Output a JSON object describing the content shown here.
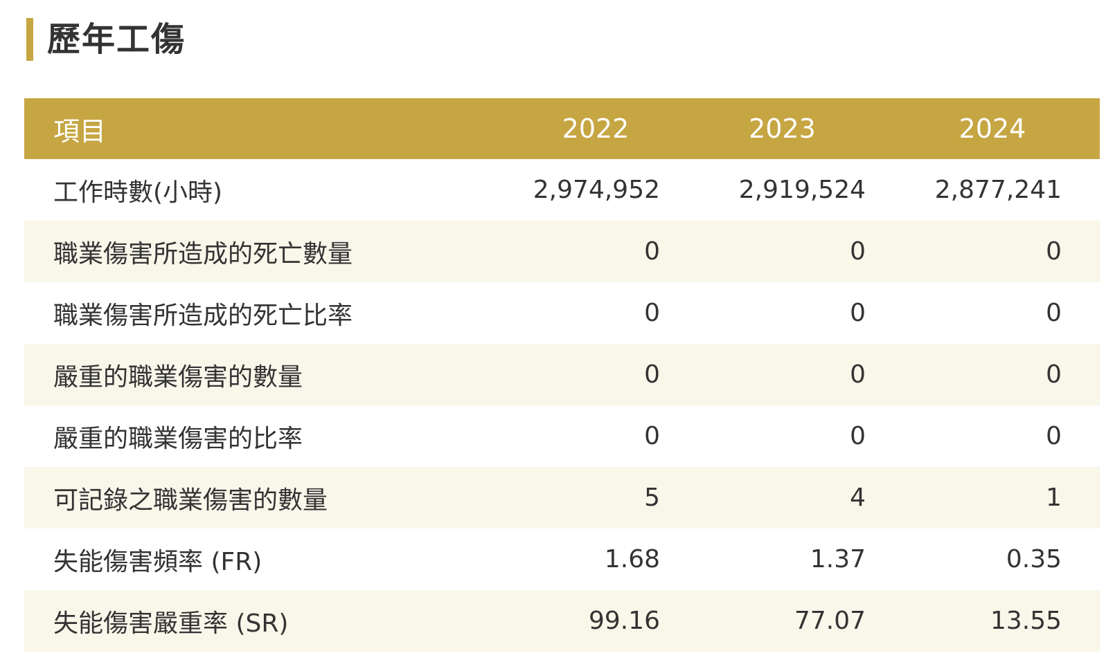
{
  "section": {
    "title": "歷年工傷"
  },
  "colors": {
    "accent": "#c6a643",
    "row_alt": "#f9f6ea",
    "text": "#333333"
  },
  "table": {
    "headers": [
      "項目",
      "2022",
      "2023",
      "2024"
    ],
    "rows": [
      {
        "label": "工作時數(小時)",
        "values": [
          "2,974,952",
          "2,919,524",
          "2,877,241"
        ]
      },
      {
        "label": "職業傷害所造成的死亡數量",
        "values": [
          "0",
          "0",
          "0"
        ]
      },
      {
        "label": "職業傷害所造成的死亡比率",
        "values": [
          "0",
          "0",
          "0"
        ]
      },
      {
        "label": "嚴重的職業傷害的數量",
        "values": [
          "0",
          "0",
          "0"
        ]
      },
      {
        "label": "嚴重的職業傷害的比率",
        "values": [
          "0",
          "0",
          "0"
        ]
      },
      {
        "label": "可記錄之職業傷害的數量",
        "values": [
          "5",
          "4",
          "1"
        ]
      },
      {
        "label": "失能傷害頻率 (FR)",
        "values": [
          "1.68",
          "1.37",
          "0.35"
        ]
      },
      {
        "label": "失能傷害嚴重率 (SR)",
        "values": [
          "99.16",
          "77.07",
          "13.55"
        ]
      }
    ]
  }
}
